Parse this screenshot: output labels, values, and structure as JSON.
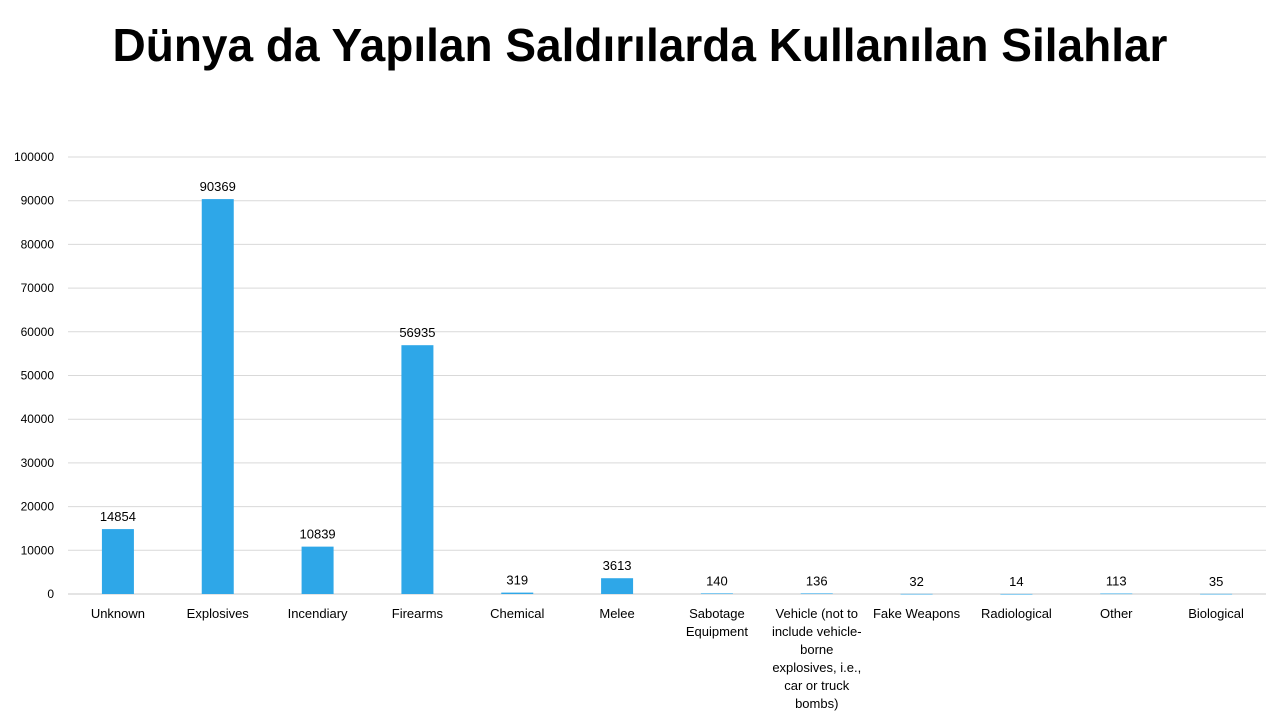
{
  "chart_data": {
    "type": "bar",
    "title": "Dünya da Yapılan Saldırılarda Kullanılan Silahlar",
    "xlabel": "",
    "ylabel": "",
    "ylim": [
      0,
      100000
    ],
    "yticks": [
      0,
      10000,
      20000,
      30000,
      40000,
      50000,
      60000,
      70000,
      80000,
      90000,
      100000
    ],
    "grid": true,
    "legend": "none",
    "bar_color": "#2ea7e8",
    "categories": [
      "Unknown",
      "Explosives",
      "Incendiary",
      "Firearms",
      "Chemical",
      "Melee",
      "Sabotage Equipment",
      "Vehicle (not to include vehicle-borne explosives, i.e., car or truck bombs)",
      "Fake Weapons",
      "Radiological",
      "Other",
      "Biological"
    ],
    "values": [
      14854,
      90369,
      10839,
      56935,
      319,
      3613,
      140,
      136,
      32,
      14,
      113,
      35
    ],
    "category_label_lines": [
      [
        "Unknown"
      ],
      [
        "Explosives"
      ],
      [
        "Incendiary"
      ],
      [
        "Firearms"
      ],
      [
        "Chemical"
      ],
      [
        "Melee"
      ],
      [
        "Sabotage",
        "Equipment"
      ],
      [
        "Vehicle (not to",
        "include vehicle-",
        "borne",
        "explosives, i.e.,",
        "car or truck",
        "bombs)"
      ],
      [
        "Fake Weapons"
      ],
      [
        "Radiological"
      ],
      [
        "Other"
      ],
      [
        "Biological"
      ]
    ]
  }
}
